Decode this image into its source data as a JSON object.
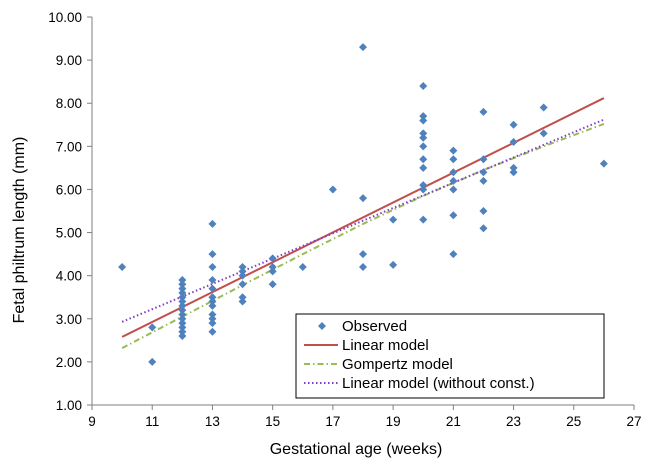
{
  "chart_data": {
    "type": "scatter",
    "xlabel": "Gestational age (weeks)",
    "ylabel": "Fetal philtrum length (mm)",
    "xlim": [
      9,
      27
    ],
    "ylim": [
      1.0,
      10.0
    ],
    "xticks": [
      9,
      11,
      13,
      15,
      17,
      19,
      21,
      23,
      25,
      27
    ],
    "xtick_labels": [
      "9",
      "11",
      "13",
      "15",
      "17",
      "19",
      "21",
      "23",
      "25",
      "27"
    ],
    "yticks": [
      1,
      2,
      3,
      4,
      5,
      6,
      7,
      8,
      9,
      10
    ],
    "ytick_labels": [
      "1.00",
      "2.00",
      "3.00",
      "4.00",
      "5.00",
      "6.00",
      "7.00",
      "8.00",
      "9.00",
      "10.00"
    ],
    "grid": false,
    "legend_position": "bottom-right",
    "series": [
      {
        "name": "Observed",
        "kind": "scatter",
        "color": "#4f81bd",
        "marker": "diamond",
        "points": [
          [
            10,
            4.2
          ],
          [
            11,
            2.8
          ],
          [
            11,
            2.0
          ],
          [
            12,
            3.9
          ],
          [
            12,
            3.8
          ],
          [
            12,
            3.7
          ],
          [
            12,
            3.6
          ],
          [
            12,
            3.5
          ],
          [
            12,
            3.4
          ],
          [
            12,
            3.3
          ],
          [
            12,
            3.2
          ],
          [
            12,
            3.1
          ],
          [
            12,
            3.0
          ],
          [
            12,
            2.9
          ],
          [
            12,
            2.8
          ],
          [
            12,
            2.7
          ],
          [
            12,
            2.6
          ],
          [
            13,
            5.2
          ],
          [
            13,
            4.5
          ],
          [
            13,
            4.2
          ],
          [
            13,
            3.9
          ],
          [
            13,
            3.7
          ],
          [
            13,
            3.5
          ],
          [
            13,
            3.4
          ],
          [
            13,
            3.3
          ],
          [
            13,
            3.1
          ],
          [
            13,
            3.0
          ],
          [
            13,
            2.9
          ],
          [
            13,
            2.7
          ],
          [
            14,
            4.2
          ],
          [
            14,
            4.1
          ],
          [
            14,
            4.0
          ],
          [
            14,
            3.8
          ],
          [
            14,
            3.5
          ],
          [
            14,
            3.4
          ],
          [
            15,
            4.4
          ],
          [
            15,
            4.2
          ],
          [
            15,
            4.1
          ],
          [
            15,
            3.8
          ],
          [
            16,
            4.2
          ],
          [
            17,
            6.0
          ],
          [
            18,
            9.3
          ],
          [
            18,
            5.8
          ],
          [
            18,
            4.5
          ],
          [
            18,
            4.2
          ],
          [
            19,
            5.3
          ],
          [
            19,
            4.25
          ],
          [
            20,
            8.4
          ],
          [
            20,
            7.7
          ],
          [
            20,
            7.6
          ],
          [
            20,
            7.3
          ],
          [
            20,
            7.2
          ],
          [
            20,
            7.0
          ],
          [
            20,
            6.7
          ],
          [
            20,
            6.5
          ],
          [
            20,
            6.1
          ],
          [
            20,
            6.0
          ],
          [
            20,
            5.3
          ],
          [
            21,
            6.9
          ],
          [
            21,
            6.7
          ],
          [
            21,
            6.4
          ],
          [
            21,
            6.2
          ],
          [
            21,
            6.0
          ],
          [
            21,
            5.4
          ],
          [
            21,
            4.5
          ],
          [
            22,
            7.8
          ],
          [
            22,
            6.7
          ],
          [
            22,
            6.4
          ],
          [
            22,
            6.2
          ],
          [
            22,
            5.5
          ],
          [
            22,
            5.1
          ],
          [
            23,
            7.5
          ],
          [
            23,
            7.1
          ],
          [
            23,
            6.5
          ],
          [
            23,
            6.4
          ],
          [
            24,
            7.9
          ],
          [
            24,
            7.3
          ],
          [
            26,
            6.6
          ]
        ]
      },
      {
        "name": "Linear model",
        "kind": "line",
        "color": "#c0504d",
        "dash": "solid",
        "points": [
          [
            10,
            2.58
          ],
          [
            26,
            8.12
          ]
        ]
      },
      {
        "name": "Gompertz model",
        "kind": "line",
        "color": "#9bbb59",
        "dash": "dashdot",
        "points": [
          [
            10,
            2.32
          ],
          [
            12,
            3.05
          ],
          [
            14,
            3.78
          ],
          [
            16,
            4.5
          ],
          [
            18,
            5.2
          ],
          [
            20,
            5.85
          ],
          [
            22,
            6.45
          ],
          [
            24,
            7.0
          ],
          [
            26,
            7.52
          ]
        ]
      },
      {
        "name": "Linear model (without const.)",
        "kind": "line",
        "color": "#7f3fbf",
        "dash": "dotted",
        "points": [
          [
            10,
            2.93
          ],
          [
            26,
            7.62
          ]
        ]
      }
    ]
  }
}
